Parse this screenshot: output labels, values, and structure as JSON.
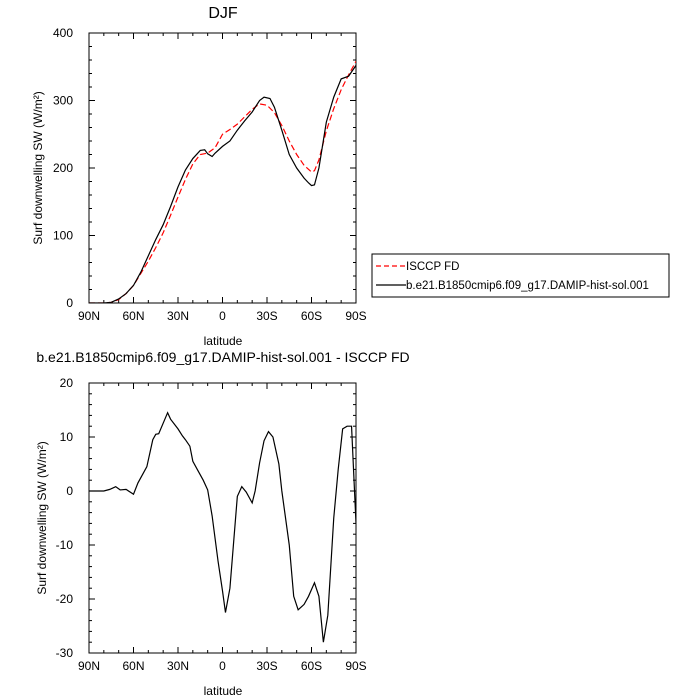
{
  "chart_data": [
    {
      "type": "line",
      "title": "DJF",
      "xlabel": "latitude",
      "ylabel": "Surf downwelling SW (W/m²)",
      "xlim": [
        90,
        -90
      ],
      "ylim": [
        0,
        400
      ],
      "x_ticks": [
        90,
        60,
        30,
        0,
        -30,
        -60,
        -90
      ],
      "x_tick_labels": [
        "90N",
        "60N",
        "30N",
        "0",
        "30S",
        "60S",
        "90S"
      ],
      "y_ticks": [
        0,
        100,
        200,
        300,
        400
      ],
      "y_tick_labels": [
        "0",
        "100",
        "200",
        "300",
        "400"
      ],
      "grid": false,
      "legend_position": "outside-right",
      "series": [
        {
          "name": "ISCCP FD",
          "color": "#ff0000",
          "dash": "dashed",
          "points": [
            [
              90,
              0
            ],
            [
              80,
              0
            ],
            [
              75,
              1
            ],
            [
              70,
              5
            ],
            [
              65,
              14
            ],
            [
              60,
              26
            ],
            [
              55,
              44
            ],
            [
              50,
              62
            ],
            [
              45,
              82
            ],
            [
              40,
              104
            ],
            [
              35,
              130
            ],
            [
              30,
              157
            ],
            [
              25,
              183
            ],
            [
              20,
              206
            ],
            [
              15,
              220
            ],
            [
              10,
              222
            ],
            [
              5,
              230
            ],
            [
              2,
              242
            ],
            [
              0,
              250
            ],
            [
              -5,
              257
            ],
            [
              -10,
              265
            ],
            [
              -15,
              276
            ],
            [
              -20,
              287
            ],
            [
              -25,
              295
            ],
            [
              -30,
              293
            ],
            [
              -35,
              282
            ],
            [
              -40,
              263
            ],
            [
              -45,
              240
            ],
            [
              -50,
              220
            ],
            [
              -55,
              204
            ],
            [
              -60,
              194
            ],
            [
              -62,
              196
            ],
            [
              -65,
              212
            ],
            [
              -70,
              255
            ],
            [
              -75,
              288
            ],
            [
              -80,
              316
            ],
            [
              -85,
              338
            ],
            [
              -90,
              358
            ]
          ]
        },
        {
          "name": "b.e21.B1850cmip6.f09_g17.DAMIP-hist-sol.001",
          "color": "#000000",
          "dash": "solid",
          "points": [
            [
              90,
              0
            ],
            [
              80,
              0
            ],
            [
              75,
              1
            ],
            [
              70,
              6
            ],
            [
              65,
              14
            ],
            [
              60,
              26
            ],
            [
              55,
              46
            ],
            [
              50,
              70
            ],
            [
              45,
              94
            ],
            [
              40,
              116
            ],
            [
              35,
              143
            ],
            [
              30,
              172
            ],
            [
              25,
              197
            ],
            [
              20,
              214
            ],
            [
              15,
              226
            ],
            [
              12,
              227
            ],
            [
              10,
              221
            ],
            [
              7,
              217
            ],
            [
              5,
              222
            ],
            [
              0,
              232
            ],
            [
              -5,
              240
            ],
            [
              -10,
              256
            ],
            [
              -15,
              270
            ],
            [
              -20,
              283
            ],
            [
              -25,
              300
            ],
            [
              -28,
              305
            ],
            [
              -32,
              303
            ],
            [
              -35,
              290
            ],
            [
              -40,
              256
            ],
            [
              -45,
              220
            ],
            [
              -50,
              200
            ],
            [
              -55,
              185
            ],
            [
              -58,
              178
            ],
            [
              -60,
              174
            ],
            [
              -62,
              175
            ],
            [
              -65,
              200
            ],
            [
              -70,
              268
            ],
            [
              -75,
              305
            ],
            [
              -80,
              332
            ],
            [
              -85,
              336
            ],
            [
              -90,
              352
            ]
          ]
        }
      ]
    },
    {
      "type": "line",
      "title": "b.e21.B1850cmip6.f09_g17.DAMIP-hist-sol.001 - ISCCP FD",
      "xlabel": "latitude",
      "ylabel": "Surf downwelling SW (W/m²)",
      "xlim": [
        90,
        -90
      ],
      "ylim": [
        -30,
        20
      ],
      "x_ticks": [
        90,
        60,
        30,
        0,
        -30,
        -60,
        -90
      ],
      "x_tick_labels": [
        "90N",
        "60N",
        "30N",
        "0",
        "30S",
        "60S",
        "90S"
      ],
      "y_ticks": [
        -30,
        -20,
        -10,
        0,
        10,
        20
      ],
      "y_tick_labels": [
        "-30",
        "-20",
        "-10",
        "0",
        "10",
        "20"
      ],
      "grid": false,
      "series": [
        {
          "color": "#000000",
          "dash": "solid",
          "points": [
            [
              90,
              0
            ],
            [
              80,
              0
            ],
            [
              76,
              0.3
            ],
            [
              72,
              0.8
            ],
            [
              69,
              0.2
            ],
            [
              65,
              0.3
            ],
            [
              60,
              -0.6
            ],
            [
              57,
              1.5
            ],
            [
              51,
              4.5
            ],
            [
              47,
              9.5
            ],
            [
              45,
              10.5
            ],
            [
              43,
              10.6
            ],
            [
              37,
              14.5
            ],
            [
              35,
              13.3
            ],
            [
              30,
              11.5
            ],
            [
              27,
              10.2
            ],
            [
              25,
              9.5
            ],
            [
              22,
              8.3
            ],
            [
              20,
              5.5
            ],
            [
              17,
              4
            ],
            [
              13,
              2
            ],
            [
              10,
              0.2
            ],
            [
              7,
              -4.6
            ],
            [
              3,
              -13
            ],
            [
              0,
              -18.5
            ],
            [
              -2,
              -22.5
            ],
            [
              -5,
              -18
            ],
            [
              -10,
              -1
            ],
            [
              -13,
              0.8
            ],
            [
              -16,
              -0.2
            ],
            [
              -20,
              -2.2
            ],
            [
              -22,
              0
            ],
            [
              -25,
              5.2
            ],
            [
              -28,
              9.3
            ],
            [
              -31,
              11
            ],
            [
              -34,
              10
            ],
            [
              -38,
              5
            ],
            [
              -40,
              0
            ],
            [
              -45,
              -10
            ],
            [
              -48,
              -19.5
            ],
            [
              -51,
              -22
            ],
            [
              -55,
              -21
            ],
            [
              -58,
              -19.5
            ],
            [
              -62,
              -17
            ],
            [
              -65,
              -19.5
            ],
            [
              -68,
              -28
            ],
            [
              -71,
              -23
            ],
            [
              -75,
              -5
            ],
            [
              -78,
              4
            ],
            [
              -81,
              11.5
            ],
            [
              -84,
              12
            ],
            [
              -87,
              12
            ],
            [
              -90,
              -6
            ],
            [
              -94,
              -6.8
            ]
          ]
        }
      ]
    }
  ]
}
